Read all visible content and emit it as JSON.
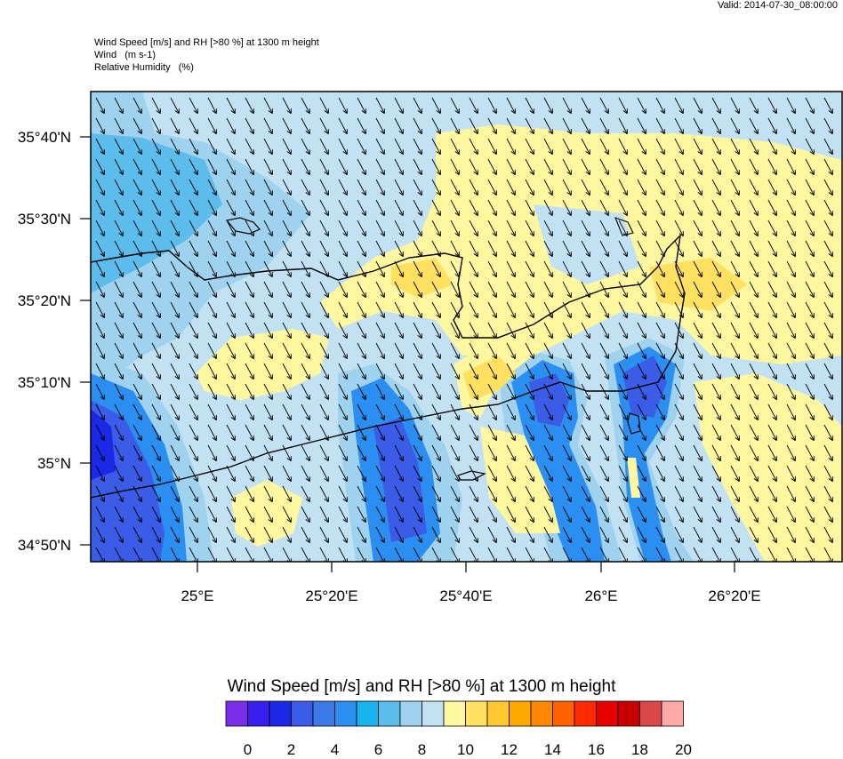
{
  "valid_time": "Valid: 2014-07-30_08:00:00",
  "header": {
    "line1": "Wind Speed [m/s] and RH [>80 %] at 1300 m height",
    "line2": "Wind   (m s-1)",
    "line3": "Relative Humidity   (%)"
  },
  "map": {
    "lat_labels": [
      "35°40'N",
      "35°30'N",
      "35°20'N",
      "35°10'N",
      "35°N",
      "34°50'N"
    ],
    "lon_labels": [
      "25°E",
      "25°20'E",
      "25°40'E",
      "26°E",
      "26°20'E"
    ],
    "wind_direction": "from north-northwest (arrows point south-southeast)"
  },
  "colorbar": {
    "title": "Wind Speed [m/s] and RH [>80 %] at 1300 m height",
    "colors": [
      "#7a2ee8",
      "#3a1ef0",
      "#1a28e8",
      "#3a5ce6",
      "#3c7ae8",
      "#2a8ff0",
      "#18b4f0",
      "#5cbcec",
      "#9fd2ee",
      "#c2e2f4",
      "#fff6a0",
      "#ffe060",
      "#ffc830",
      "#ffa800",
      "#ff8800",
      "#ff6000",
      "#ff2a00",
      "#e80000",
      "#c80000",
      "#dc4848",
      "#ffa8a8"
    ],
    "labels": [
      "0",
      "2",
      "4",
      "6",
      "8",
      "10",
      "12",
      "14",
      "16",
      "18",
      "20"
    ]
  }
}
